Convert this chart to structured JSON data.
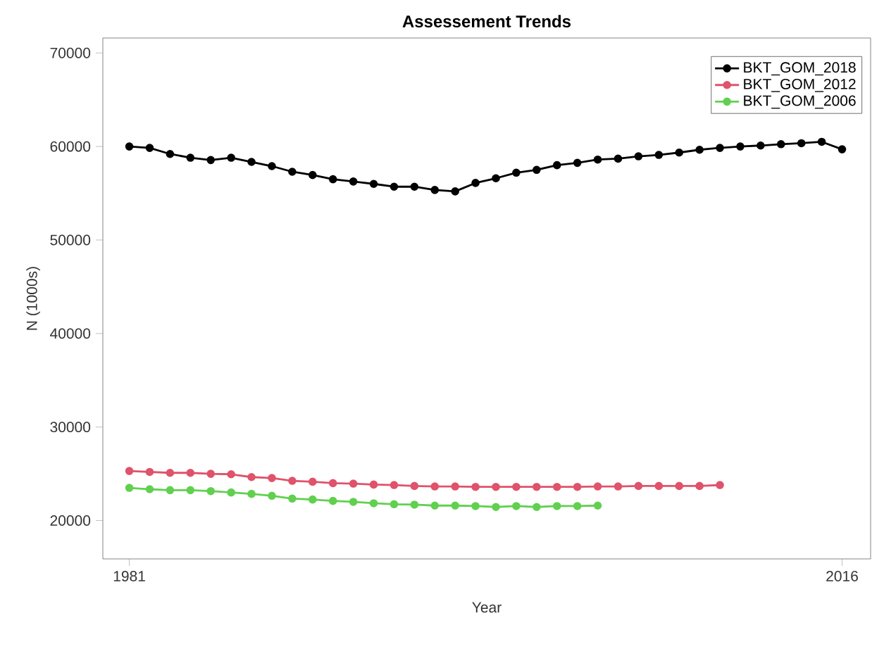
{
  "chart_data": {
    "type": "line",
    "title": "Assessement Trends",
    "xlabel": "Year",
    "ylabel": "N (1000s)",
    "xlim": [
      1979.7,
      2017.4
    ],
    "ylim": [
      15900,
      71600
    ],
    "xticks": [
      1981,
      2016
    ],
    "yticks": [
      20000,
      30000,
      40000,
      50000,
      60000,
      70000
    ],
    "legend": "top right",
    "marker": "circle",
    "line_style": "solid",
    "grid": false,
    "series": [
      {
        "name": "BKT_GOM_2018",
        "color": "#000000",
        "x": [
          1981,
          1982,
          1983,
          1984,
          1985,
          1986,
          1987,
          1988,
          1989,
          1990,
          1991,
          1992,
          1993,
          1994,
          1995,
          1996,
          1997,
          1998,
          1999,
          2000,
          2001,
          2002,
          2003,
          2004,
          2005,
          2006,
          2007,
          2008,
          2009,
          2010,
          2011,
          2012,
          2013,
          2014,
          2015,
          2016
        ],
        "values": [
          60000,
          59850,
          59200,
          58800,
          58550,
          58800,
          58350,
          57900,
          57300,
          56950,
          56500,
          56250,
          56000,
          55700,
          55700,
          55350,
          55200,
          56100,
          56600,
          57200,
          57500,
          58000,
          58250,
          58600,
          58700,
          58950,
          59100,
          59350,
          59650,
          59850,
          60000,
          60100,
          60250,
          60350,
          60500,
          59700
        ]
      },
      {
        "name": "BKT_GOM_2012",
        "color": "#df536b",
        "x": [
          1981,
          1982,
          1983,
          1984,
          1985,
          1986,
          1987,
          1988,
          1989,
          1990,
          1991,
          1992,
          1993,
          1994,
          1995,
          1996,
          1997,
          1998,
          1999,
          2000,
          2001,
          2002,
          2003,
          2004,
          2005,
          2006,
          2007,
          2008,
          2009,
          2010
        ],
        "values": [
          25300,
          25200,
          25100,
          25100,
          25000,
          24950,
          24650,
          24550,
          24250,
          24150,
          24000,
          23950,
          23850,
          23800,
          23700,
          23650,
          23650,
          23600,
          23600,
          23600,
          23600,
          23600,
          23600,
          23650,
          23650,
          23700,
          23700,
          23700,
          23700,
          23800
        ]
      },
      {
        "name": "BKT_GOM_2006",
        "color": "#61d04f",
        "x": [
          1981,
          1982,
          1983,
          1984,
          1985,
          1986,
          1987,
          1988,
          1989,
          1990,
          1991,
          1992,
          1993,
          1994,
          1995,
          1996,
          1997,
          1998,
          1999,
          2000,
          2001,
          2002,
          2003,
          2004
        ],
        "values": [
          23500,
          23350,
          23250,
          23250,
          23150,
          23000,
          22850,
          22650,
          22350,
          22250,
          22100,
          22000,
          21850,
          21750,
          21700,
          21600,
          21600,
          21550,
          21450,
          21550,
          21450,
          21550,
          21550,
          21600
        ]
      }
    ]
  }
}
